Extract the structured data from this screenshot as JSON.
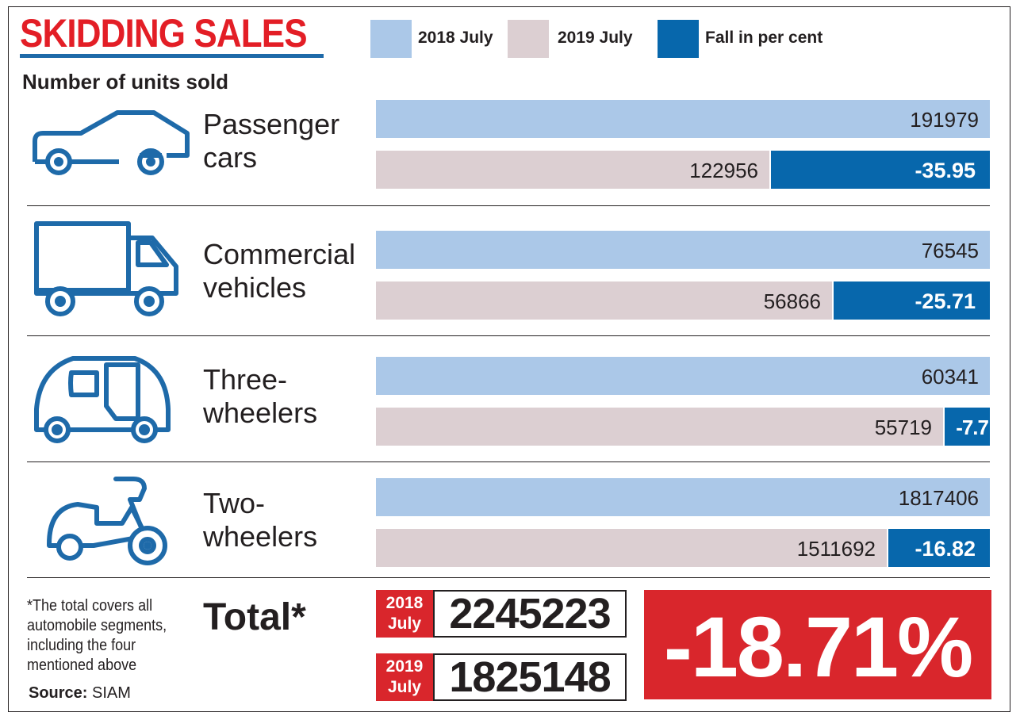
{
  "header": {
    "title": "SKIDDING SALES",
    "subtitle": "Number of units sold"
  },
  "legend": [
    {
      "label": "2018 July",
      "color": "#abc8e8"
    },
    {
      "label": "2019 July",
      "color": "#dccfd2"
    },
    {
      "label": "Fall in per cent",
      "color": "#0767ac"
    }
  ],
  "chart_data": {
    "type": "bar",
    "title": "SKIDDING SALES",
    "subtitle": "Number of units sold",
    "categories": [
      {
        "line1": "Passenger",
        "line2": "cars",
        "icon": "car-icon",
        "y2018": 191979,
        "y2019": 122956,
        "fall": "-35.95",
        "fall_value": -35.95
      },
      {
        "line1": "Commercial",
        "line2": "vehicles",
        "icon": "truck-icon",
        "y2018": 76545,
        "y2019": 56866,
        "fall": "-25.71",
        "fall_value": -25.71
      },
      {
        "line1": "Three-",
        "line2": "wheelers",
        "icon": "auto-rickshaw-icon",
        "y2018": 60341,
        "y2019": 55719,
        "fall": "-7.7",
        "fall_value": -7.7
      },
      {
        "line1": "Two-",
        "line2": "wheelers",
        "icon": "scooter-icon",
        "y2018": 1817406,
        "y2019": 1511692,
        "fall": "-16.82",
        "fall_value": -16.82
      }
    ],
    "series": [
      {
        "name": "2018 July",
        "color": "#abc8e8"
      },
      {
        "name": "2019 July",
        "color": "#dccfd2"
      },
      {
        "name": "Fall in per cent",
        "color": "#0767ac"
      }
    ]
  },
  "total": {
    "label": "Total*",
    "tag_2018_line1": "2018",
    "tag_2018_line2": "July",
    "value_2018": "2245223",
    "tag_2019_line1": "2019",
    "tag_2019_line2": "July",
    "value_2019": "1825148",
    "fall": "-18.71%"
  },
  "footer": {
    "note": "*The total covers all automobile segments, including the four mentioned above",
    "source_label": "Source:",
    "source_value": "SIAM"
  },
  "colors": {
    "title_red": "#e31e26",
    "accent_blue": "#1e6aa9",
    "total_red": "#d9262c"
  }
}
